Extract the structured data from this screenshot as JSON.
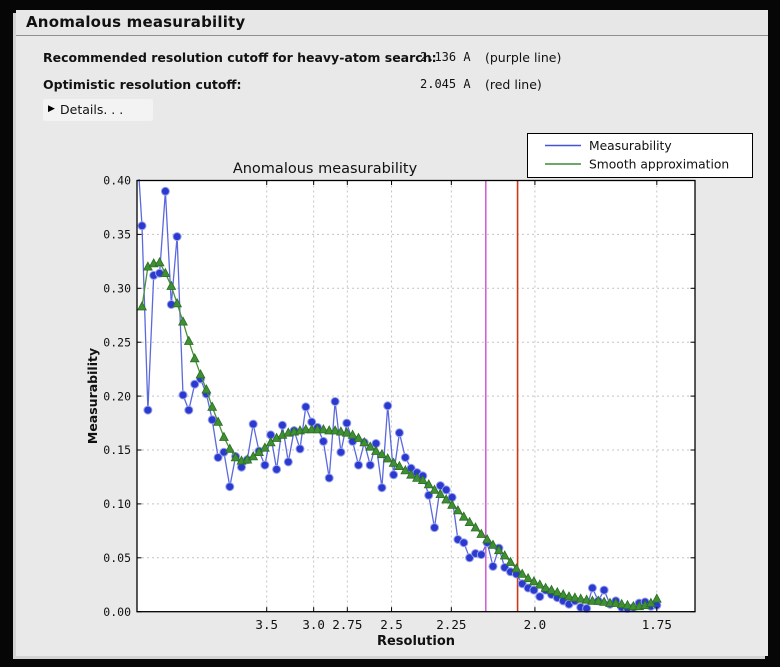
{
  "window": {
    "title": "Anomalous measurability"
  },
  "info": {
    "rows": [
      {
        "label": "Recommended resolution cutoff for heavy-atom search:",
        "value": "2.136 A",
        "note": "(purple line)"
      },
      {
        "label": "Optimistic resolution cutoff:",
        "value": "2.045 A",
        "note": "(red line)"
      }
    ],
    "disclosure_icon": "▶",
    "details_label": "Details. . ."
  },
  "chart_data": {
    "type": "line",
    "title": "Anomalous measurability",
    "xlabel": "Resolution",
    "ylabel": "Measurability",
    "ylim": [
      0.0,
      0.4
    ],
    "grid": true,
    "legend_position": "upper right (outside top of axes)",
    "x_axis_note": "x is linear in 1/d^2; resolution (A) decreases left to right",
    "x_range_inv_d2": [
      0.0002,
      0.3505
    ],
    "x_start_inv_d2": 0.00337,
    "x_step_inv_d2": 0.003672,
    "clipped_entry_value": 0.42,
    "yticks": [
      {
        "label": "0.00",
        "v": 0.0
      },
      {
        "label": "0.05",
        "v": 0.05
      },
      {
        "label": "0.10",
        "v": 0.1
      },
      {
        "label": "0.15",
        "v": 0.15
      },
      {
        "label": "0.20",
        "v": 0.2
      },
      {
        "label": "0.25",
        "v": 0.25
      },
      {
        "label": "0.30",
        "v": 0.3
      },
      {
        "label": "0.35",
        "v": 0.35
      },
      {
        "label": "0.40",
        "v": 0.4
      }
    ],
    "xticks": [
      {
        "label": "3.5",
        "d": 3.5
      },
      {
        "label": "3.0",
        "d": 3.0
      },
      {
        "label": "2.75",
        "d": 2.75
      },
      {
        "label": "2.5",
        "d": 2.5
      },
      {
        "label": "2.25",
        "d": 2.25
      },
      {
        "label": "2.0",
        "d": 2.0
      },
      {
        "label": "1.75",
        "d": 1.75
      }
    ],
    "cutoffs": [
      {
        "name": "purple line",
        "resolution": 2.136,
        "color": "#cc3ecc",
        "width": 1.3
      },
      {
        "name": "red line",
        "resolution": 2.045,
        "color": "#cf3810",
        "width": 1.6
      }
    ],
    "legend": [
      {
        "label": "Measurability",
        "color": "#4553d6"
      },
      {
        "label": "Smooth approximation",
        "color": "#3d8b37"
      }
    ],
    "series": [
      {
        "name": "Measurability",
        "marker": "circle",
        "line_color": "#5b69dd",
        "marker_fill": "#2a3ad0",
        "marker_edge": "#98a0e8",
        "values": [
          0.358,
          0.187,
          0.312,
          0.314,
          0.39,
          0.285,
          0.348,
          0.201,
          0.187,
          0.211,
          0.216,
          0.202,
          0.178,
          0.143,
          0.148,
          0.116,
          0.144,
          0.134,
          0.141,
          0.174,
          0.149,
          0.136,
          0.164,
          0.132,
          0.173,
          0.139,
          0.168,
          0.151,
          0.19,
          0.176,
          0.171,
          0.158,
          0.124,
          0.195,
          0.148,
          0.175,
          0.158,
          0.136,
          0.157,
          0.136,
          0.156,
          0.115,
          0.191,
          0.127,
          0.166,
          0.143,
          0.133,
          0.129,
          0.126,
          0.108,
          0.078,
          0.117,
          0.113,
          0.106,
          0.067,
          0.064,
          0.05,
          0.054,
          0.053,
          0.064,
          0.042,
          0.059,
          0.041,
          0.037,
          0.035,
          0.026,
          0.022,
          0.02,
          0.014,
          0.02,
          0.016,
          0.013,
          0.01,
          0.007,
          0.01,
          0.004,
          0.003,
          0.022,
          0.01,
          0.02,
          0.007,
          0.01,
          0.004,
          0.003,
          0.004,
          0.008,
          0.009,
          0.005,
          0.006
        ]
      },
      {
        "name": "Smooth approximation",
        "marker": "triangle",
        "line_color": "#4a9038",
        "marker_fill": "#3f8f33",
        "marker_edge": "#2c6e26",
        "values": [
          0.283,
          0.32,
          0.323,
          0.324,
          0.314,
          0.302,
          0.286,
          0.269,
          0.251,
          0.235,
          0.22,
          0.206,
          0.19,
          0.176,
          0.162,
          0.151,
          0.143,
          0.14,
          0.141,
          0.144,
          0.148,
          0.152,
          0.157,
          0.161,
          0.164,
          0.166,
          0.167,
          0.168,
          0.169,
          0.169,
          0.169,
          0.169,
          0.168,
          0.168,
          0.167,
          0.166,
          0.164,
          0.161,
          0.157,
          0.153,
          0.149,
          0.146,
          0.142,
          0.138,
          0.135,
          0.131,
          0.127,
          0.124,
          0.122,
          0.118,
          0.113,
          0.109,
          0.104,
          0.099,
          0.094,
          0.088,
          0.083,
          0.078,
          0.072,
          0.067,
          0.062,
          0.057,
          0.052,
          0.046,
          0.04,
          0.035,
          0.031,
          0.028,
          0.025,
          0.022,
          0.02,
          0.018,
          0.016,
          0.014,
          0.013,
          0.012,
          0.011,
          0.01,
          0.01,
          0.009,
          0.008,
          0.008,
          0.007,
          0.006,
          0.005,
          0.005,
          0.006,
          0.008,
          0.012
        ]
      }
    ]
  },
  "colors": {
    "panel_bg": "#e9e9e9",
    "plot_bg": "#ffffff",
    "grid": "#c4c4c4",
    "frame": "#000000",
    "purple_cutoff": "#cc3ecc",
    "red_cutoff": "#cf3810",
    "blue_series": "#4553d6",
    "green_series": "#3d8b37"
  }
}
